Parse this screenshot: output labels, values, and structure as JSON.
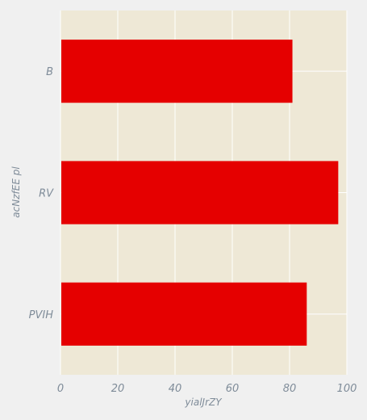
{
  "chart_data": {
    "type": "bar",
    "orientation": "horizontal",
    "categories": [
      "B",
      "RV",
      "PVIH"
    ],
    "values": [
      81,
      97,
      86
    ],
    "xlabel": "yialJrZY",
    "ylabel": "acNzfEE pl",
    "xlim": [
      0,
      100
    ],
    "xticks": [
      "0",
      "20",
      "40",
      "60",
      "80",
      "100"
    ],
    "grid": true,
    "colors": {
      "bar": "#e50000",
      "plot_background": "#eee8d6",
      "figure_background": "#f0f0f0",
      "grid": "#ffffff",
      "text": "#7f8c99"
    }
  }
}
